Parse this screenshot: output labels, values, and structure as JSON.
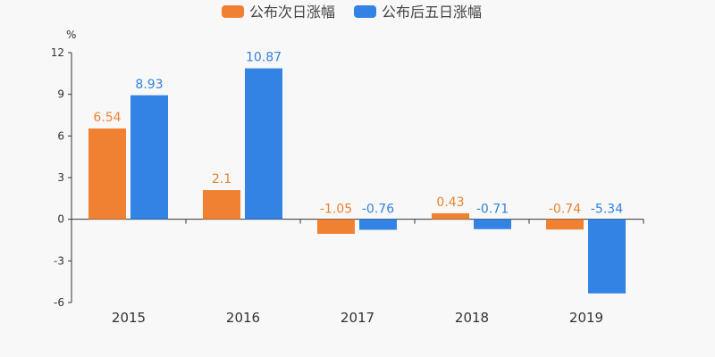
{
  "chart_data": {
    "type": "bar",
    "title": "",
    "ylabel": "%",
    "xlabel": "",
    "categories": [
      "2015",
      "2016",
      "2017",
      "2018",
      "2019"
    ],
    "series": [
      {
        "name": "公布次日涨幅",
        "color": "#f08133",
        "values": [
          6.54,
          2.1,
          -1.05,
          0.43,
          -0.74
        ],
        "labels": [
          "6.54",
          "2.1",
          "-1.05",
          "0.43",
          "-0.74"
        ]
      },
      {
        "name": "公布后五日涨幅",
        "color": "#3283e3",
        "values": [
          8.93,
          10.87,
          -0.76,
          -0.71,
          -5.34
        ],
        "labels": [
          "8.93",
          "10.87",
          "-0.76",
          "-0.71",
          "-5.34"
        ]
      }
    ],
    "ylim": [
      -6,
      12
    ],
    "yticks": [
      "-6",
      "-3",
      "0",
      "3",
      "6",
      "9",
      "12"
    ],
    "ytick_values": [
      -6,
      -3,
      0,
      3,
      6,
      9,
      12
    ],
    "grid": false,
    "legend_position": "top-center"
  }
}
